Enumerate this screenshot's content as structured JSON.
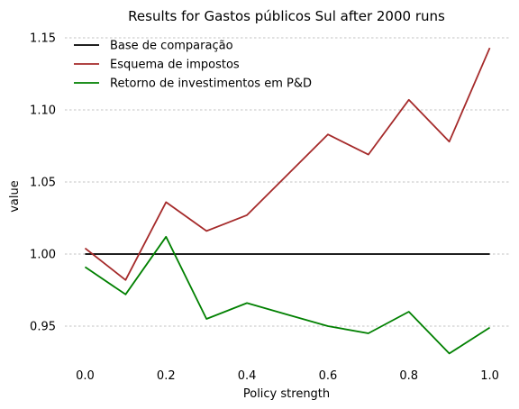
{
  "chart_data": {
    "type": "line",
    "title": "Results for Gastos públicos Sul after 2000 runs",
    "xlabel": "Policy strength",
    "ylabel": "value",
    "x": [
      0.0,
      0.1,
      0.2,
      0.3,
      0.4,
      0.5,
      0.6,
      0.7,
      0.8,
      0.9,
      1.0
    ],
    "xlim": [
      -0.05,
      1.05
    ],
    "ylim": [
      0.92,
      1.155
    ],
    "xticks": [
      0.0,
      0.2,
      0.4,
      0.6,
      0.8,
      1.0
    ],
    "xtick_labels": [
      "0.0",
      "0.2",
      "0.4",
      "0.6",
      "0.8",
      "1.0"
    ],
    "yticks": [
      0.95,
      1.0,
      1.05,
      1.1,
      1.15
    ],
    "ytick_labels": [
      "0.95",
      "1.00",
      "1.05",
      "1.10",
      "1.15"
    ],
    "grid": "horizontal dashed",
    "legend_position": "top-left",
    "series": [
      {
        "name": "Base de comparação",
        "color": "#000000",
        "values": [
          1.0,
          1.0,
          1.0,
          1.0,
          1.0,
          1.0,
          1.0,
          1.0,
          1.0,
          1.0,
          1.0
        ]
      },
      {
        "name": "Esquema de impostos",
        "color": "#a52a2a",
        "values": [
          1.004,
          0.982,
          1.036,
          1.016,
          1.027,
          1.055,
          1.083,
          1.069,
          1.107,
          1.078,
          1.143
        ]
      },
      {
        "name": "Retorno de investimentos em P&D",
        "color": "#008000",
        "values": [
          0.991,
          0.972,
          1.012,
          0.955,
          0.966,
          0.958,
          0.95,
          0.945,
          0.96,
          0.931,
          0.949
        ]
      }
    ]
  }
}
